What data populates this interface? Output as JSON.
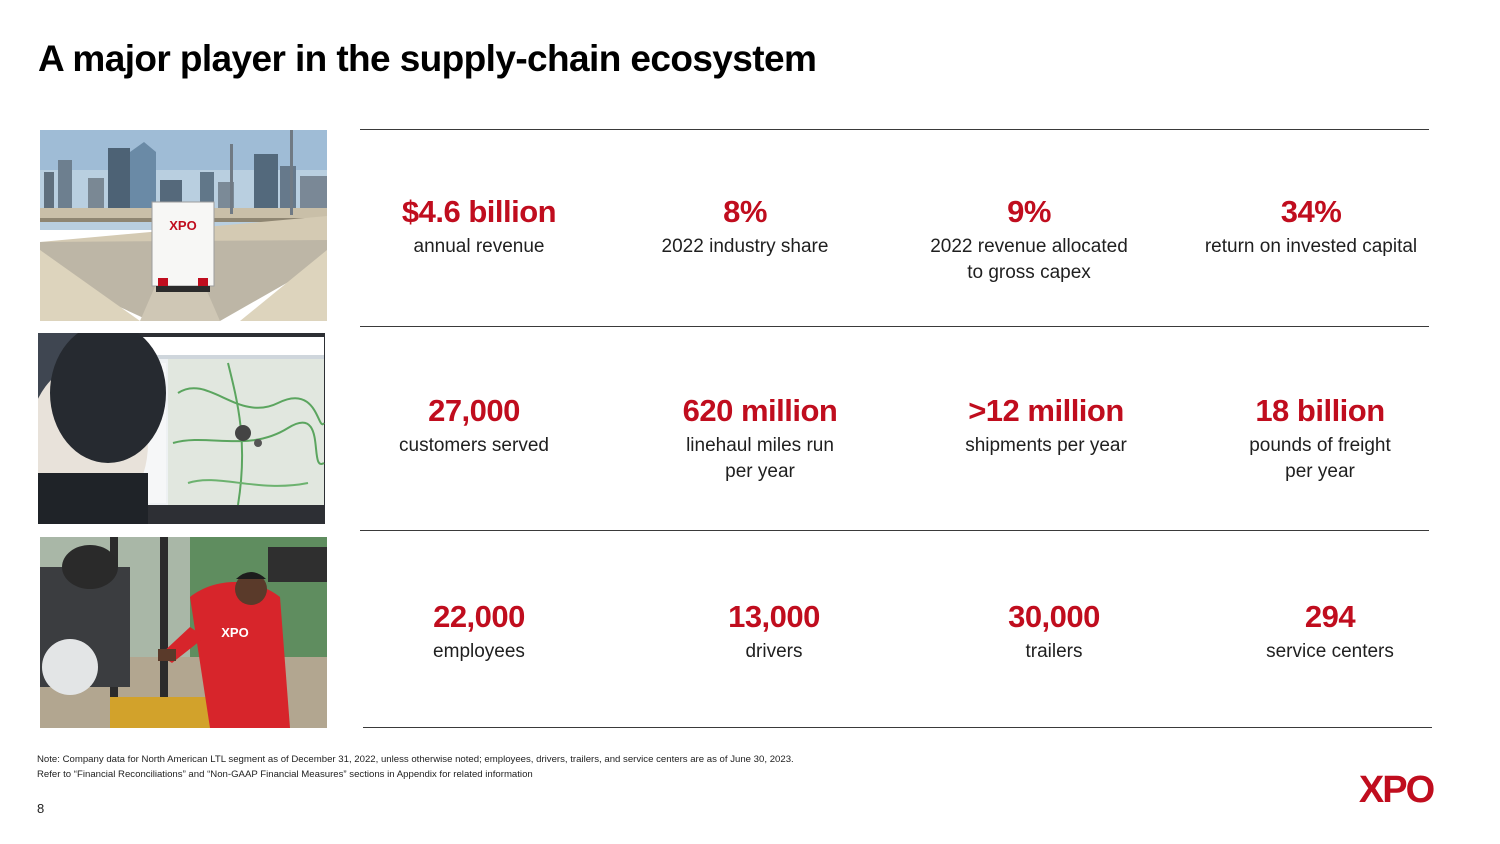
{
  "page": {
    "title": "A major player in the supply-chain ecosystem",
    "page_number": "8",
    "logo_text": "XPO"
  },
  "colors": {
    "accent": "#c00d1e",
    "rule": "#3a3a3a",
    "text": "#1f1f1f"
  },
  "photos": [
    {
      "subject": "XPO truck on highway with city skyline",
      "sign_text": "XPO"
    },
    {
      "subject": "Person viewing route map dashboard on monitor"
    },
    {
      "subject": "Employee in red XPO hoodie shaking hands near forklift",
      "sign_text": "XPO"
    }
  ],
  "stats": [
    [
      {
        "value": "$4.6 billion",
        "label": "annual revenue"
      },
      {
        "value": "8%",
        "label": "2022 industry share"
      },
      {
        "value": "9%",
        "label": "2022 revenue allocated\nto gross capex"
      },
      {
        "value": "34%",
        "label": "return on invested capital"
      }
    ],
    [
      {
        "value": "27,000",
        "label": "customers served"
      },
      {
        "value": "620 million",
        "label": "linehaul miles run\nper year"
      },
      {
        "value": ">12 million",
        "label": "shipments per year"
      },
      {
        "value": "18 billion",
        "label": "pounds of freight\nper year"
      }
    ],
    [
      {
        "value": "22,000",
        "label": "employees"
      },
      {
        "value": "13,000",
        "label": "drivers"
      },
      {
        "value": "30,000",
        "label": "trailers"
      },
      {
        "value": "294",
        "label": "service centers"
      }
    ]
  ],
  "notes": {
    "line1": "Note: Company data for North American LTL segment as of December 31, 2022, unless otherwise noted; employees, drivers, trailers, and service centers are as of June 30, 2023.",
    "line2": "Refer to “Financial Reconciliations” and “Non-GAAP Financial Measures” sections in Appendix for related information"
  }
}
